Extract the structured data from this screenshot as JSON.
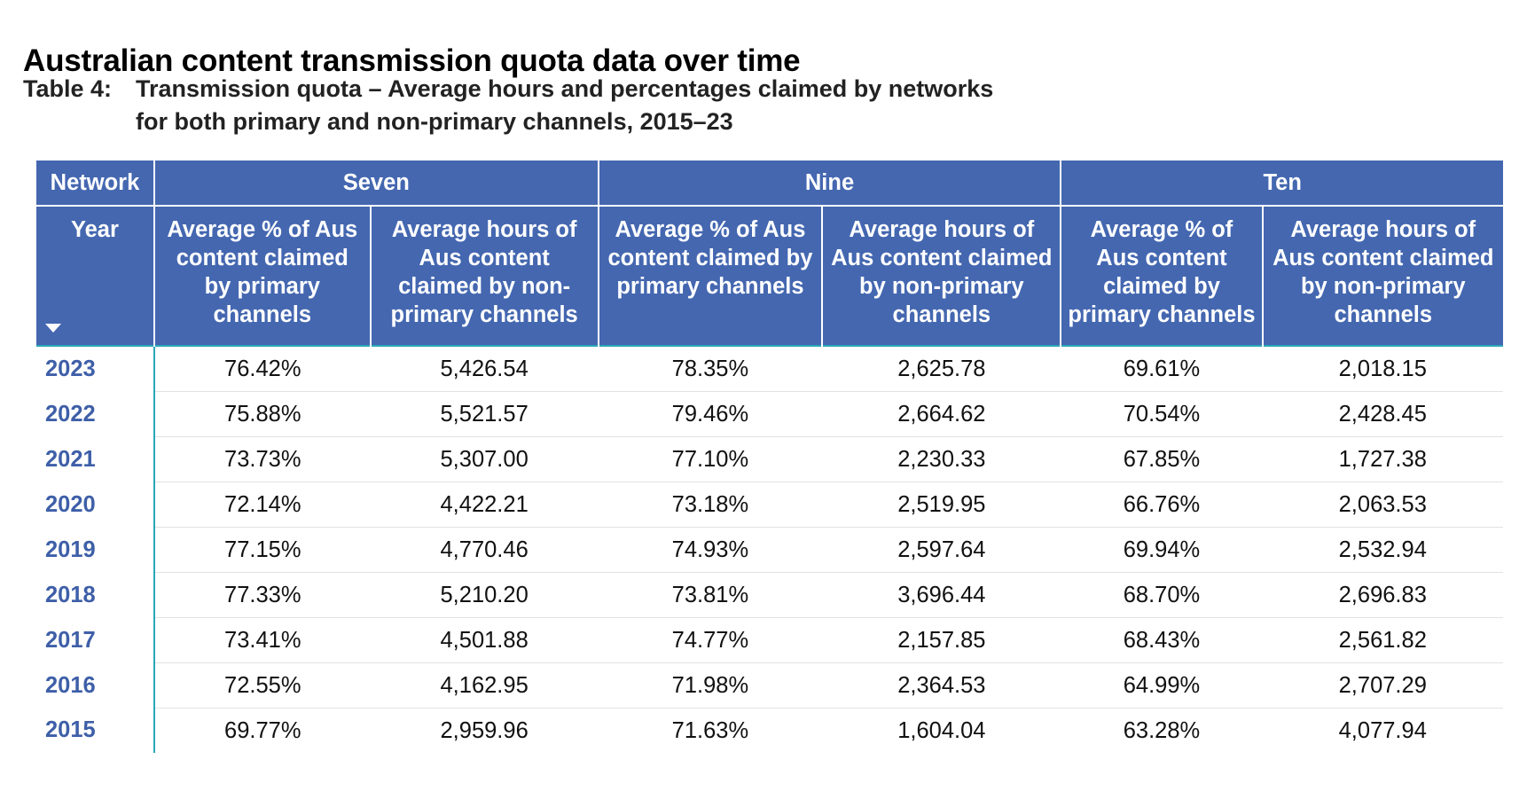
{
  "heading": "Australian content transmission quota data over time",
  "caption": {
    "label": "Table 4:",
    "line1": "Transmission quota – Average hours and percentages claimed by networks",
    "line2": "for both primary and non-primary channels, 2015–23"
  },
  "table": {
    "network_header": "Network",
    "networks": [
      "Seven",
      "Nine",
      "Ten"
    ],
    "year_header": "Year",
    "sub_headers": [
      "Average % of Aus content claimed by primary channels",
      "Average hours of Aus content claimed by non-primary channels",
      "Average % of Aus content claimed by primary channels",
      "Average hours of Aus content claimed by non-primary channels",
      "Average % of Aus content claimed by primary channels",
      "Average hours of Aus content claimed by non-primary channels"
    ],
    "rows": [
      {
        "year": "2023",
        "values": [
          "76.42%",
          "5,426.54",
          "78.35%",
          "2,625.78",
          "69.61%",
          "2,018.15"
        ]
      },
      {
        "year": "2022",
        "values": [
          "75.88%",
          "5,521.57",
          "79.46%",
          "2,664.62",
          "70.54%",
          "2,428.45"
        ]
      },
      {
        "year": "2021",
        "values": [
          "73.73%",
          "5,307.00",
          "77.10%",
          "2,230.33",
          "67.85%",
          "1,727.38"
        ]
      },
      {
        "year": "2020",
        "values": [
          "72.14%",
          "4,422.21",
          "73.18%",
          "2,519.95",
          "66.76%",
          "2,063.53"
        ]
      },
      {
        "year": "2019",
        "values": [
          "77.15%",
          "4,770.46",
          "74.93%",
          "2,597.64",
          "69.94%",
          "2,532.94"
        ]
      },
      {
        "year": "2018",
        "values": [
          "77.33%",
          "5,210.20",
          "73.81%",
          "3,696.44",
          "68.70%",
          "2,696.83"
        ]
      },
      {
        "year": "2017",
        "values": [
          "73.41%",
          "4,501.88",
          "74.77%",
          "2,157.85",
          "68.43%",
          "2,561.82"
        ]
      },
      {
        "year": "2016",
        "values": [
          "72.55%",
          "4,162.95",
          "71.98%",
          "2,364.53",
          "64.99%",
          "2,707.29"
        ]
      },
      {
        "year": "2015",
        "values": [
          "69.77%",
          "2,959.96",
          "71.63%",
          "1,604.04",
          "63.28%",
          "4,077.94"
        ]
      }
    ]
  },
  "icons": {
    "sort": "sort-down-icon"
  },
  "colors": {
    "header_bg": "#4467b0",
    "year_text": "#3e5fa8",
    "divider": "#2aa6b8"
  }
}
